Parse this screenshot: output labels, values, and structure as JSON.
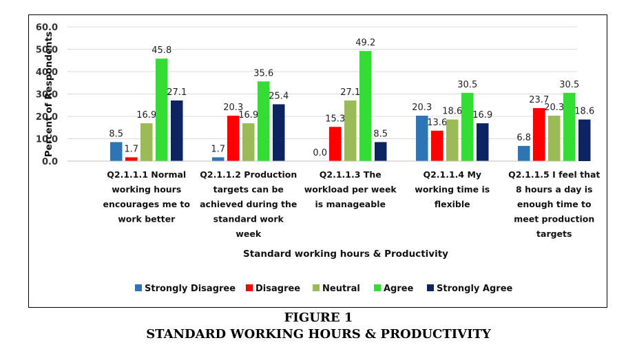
{
  "figure": {
    "number": "FIGURE 1",
    "title": "STANDARD WORKING HOURS & PRODUCTIVITY"
  },
  "chart_data": {
    "type": "bar",
    "xlabel": "Standard working hours & Productivity",
    "ylabel": "Percent of Respondents",
    "ylim": [
      0,
      60
    ],
    "yticks": [
      "0.0",
      "10.0",
      "20.0",
      "30.0",
      "40.0",
      "50.0",
      "60.0"
    ],
    "grid": true,
    "legend_position": "bottom",
    "categories": [
      [
        "Q2.1.1.1 Normal",
        "working hours",
        "encourages me to",
        "work better"
      ],
      [
        "Q2.1.1.2 Production",
        "targets can be",
        "achieved during the",
        "standard work",
        "week"
      ],
      [
        "Q2.1.1.3 The",
        "workload per week",
        "is manageable"
      ],
      [
        "Q2.1.1.4 My",
        "working time is",
        "flexible"
      ],
      [
        "Q2.1.1.5 I feel that",
        "8 hours a day is",
        "enough time to",
        "meet production",
        "targets"
      ]
    ],
    "series": [
      {
        "name": "Strongly Disagree",
        "color": "#2e75b6",
        "values": [
          8.5,
          1.7,
          0.0,
          20.3,
          6.8
        ],
        "labels": [
          "8.5",
          "1.7",
          "0.0",
          "20.3",
          "6.8"
        ]
      },
      {
        "name": "Disagree",
        "color": "#ff0000",
        "values": [
          1.7,
          20.3,
          15.3,
          13.6,
          23.7
        ],
        "labels": [
          "1.7",
          "20.3",
          "15.3",
          "13.6",
          "23.7"
        ]
      },
      {
        "name": "Neutral",
        "color": "#9bbb59",
        "values": [
          16.9,
          16.9,
          27.1,
          18.6,
          20.3
        ],
        "labels": [
          "16.9",
          "16.9",
          "27.1",
          "18.6",
          "20.3"
        ]
      },
      {
        "name": "Agree",
        "color": "#33dd33",
        "values": [
          45.8,
          35.6,
          49.2,
          30.5,
          30.5
        ],
        "labels": [
          "45.8",
          "35.6",
          "49.2",
          "30.5",
          "30.5"
        ]
      },
      {
        "name": "Strongly Agree",
        "color": "#0d2461",
        "values": [
          27.1,
          25.4,
          8.5,
          16.9,
          18.6
        ],
        "labels": [
          "27.1",
          "25.4",
          "8.5",
          "16.9",
          "18.6"
        ]
      }
    ]
  }
}
